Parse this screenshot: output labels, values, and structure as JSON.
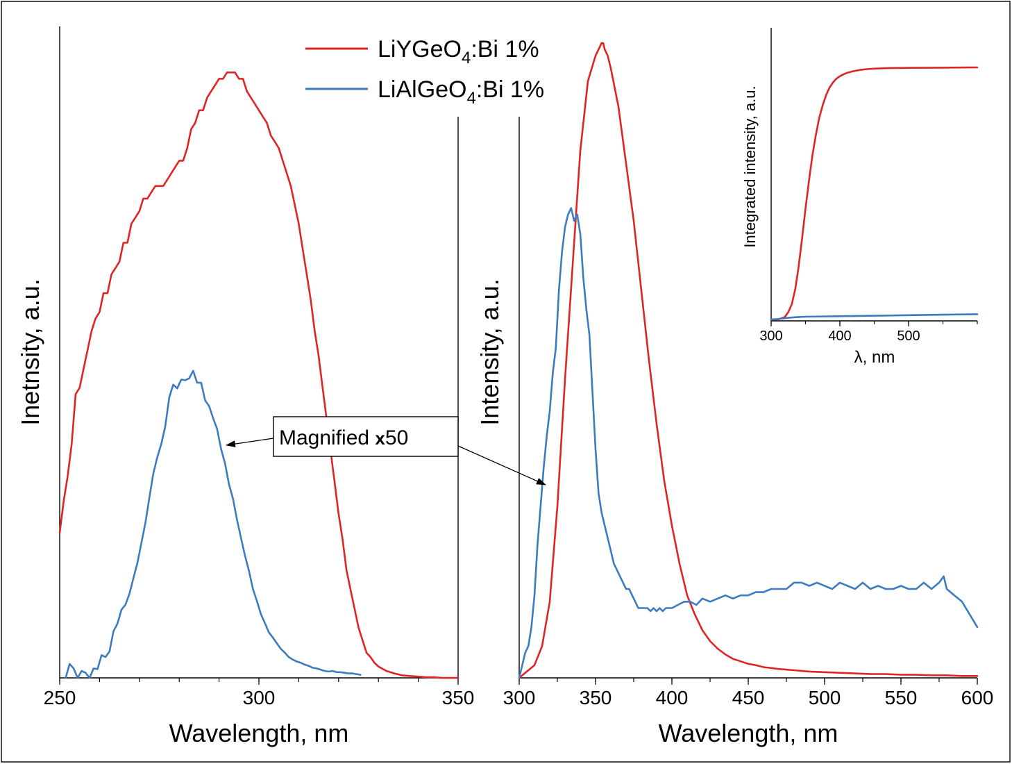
{
  "colors": {
    "series_a": "#e02424",
    "series_b": "#3b7bbf"
  },
  "legend": {
    "items": [
      {
        "formula": "LiYGeO",
        "sub": "4",
        "suffix": ":Bi 1%",
        "color": "#e02424"
      },
      {
        "formula": "LiAlGeO",
        "sub": "4",
        "suffix": ":Bi 1%",
        "color": "#3b7bbf"
      }
    ]
  },
  "annotation": {
    "prefix": "Magnified ",
    "mult": "x",
    "value": "50"
  },
  "chart_data": [
    {
      "id": "excitation",
      "type": "line",
      "xlabel": "Wavelength, nm",
      "ylabel": "Inetnsity, a.u.",
      "xlim": [
        250,
        350
      ],
      "ylim": [
        0,
        1
      ],
      "xticks": [
        250,
        300,
        350
      ],
      "series": [
        {
          "color": "#e02424",
          "x": [
            250,
            251,
            252,
            253,
            254,
            255,
            256,
            257,
            258,
            259,
            260,
            261,
            262,
            263,
            264,
            265,
            266,
            267,
            268,
            269,
            270,
            271,
            272,
            273,
            274,
            275,
            276,
            277,
            278,
            279,
            280,
            281,
            282,
            283,
            284,
            285,
            286,
            287,
            288,
            289,
            290,
            291,
            292,
            293,
            294,
            295,
            296,
            297,
            298,
            299,
            300,
            301,
            302,
            303,
            304,
            305,
            306,
            307,
            308,
            309,
            310,
            311,
            312,
            313,
            314,
            315,
            316,
            317,
            318,
            319,
            320,
            321,
            322,
            323,
            324,
            325,
            326,
            327,
            328,
            329,
            330,
            332,
            334,
            336,
            338,
            340,
            342,
            344,
            346,
            348,
            350
          ],
          "y": [
            0.23,
            0.28,
            0.32,
            0.37,
            0.45,
            0.46,
            0.49,
            0.52,
            0.55,
            0.57,
            0.58,
            0.61,
            0.61,
            0.64,
            0.65,
            0.66,
            0.69,
            0.69,
            0.72,
            0.73,
            0.74,
            0.76,
            0.76,
            0.77,
            0.78,
            0.78,
            0.78,
            0.79,
            0.8,
            0.81,
            0.82,
            0.82,
            0.84,
            0.87,
            0.88,
            0.9,
            0.9,
            0.92,
            0.93,
            0.94,
            0.95,
            0.95,
            0.96,
            0.96,
            0.96,
            0.95,
            0.95,
            0.93,
            0.92,
            0.91,
            0.9,
            0.89,
            0.88,
            0.86,
            0.85,
            0.84,
            0.82,
            0.8,
            0.78,
            0.75,
            0.72,
            0.68,
            0.64,
            0.6,
            0.55,
            0.51,
            0.46,
            0.41,
            0.36,
            0.31,
            0.26,
            0.22,
            0.17,
            0.14,
            0.11,
            0.08,
            0.06,
            0.04,
            0.033,
            0.024,
            0.018,
            0.011,
            0.007,
            0.004,
            0.003,
            0.002,
            0.001,
            0.001,
            0.0,
            0.0,
            0.0
          ]
        },
        {
          "color": "#3b7bbf",
          "x": [
            251.5,
            252.5,
            253.5,
            254.5,
            255.5,
            256.5,
            257.5,
            258.5,
            259.5,
            260.5,
            261.5,
            262.5,
            263.5,
            264.5,
            265.5,
            266.5,
            267.5,
            268.5,
            269.5,
            270.5,
            271.5,
            272.5,
            273.5,
            274.5,
            275.5,
            276.5,
            277.5,
            278.5,
            279.5,
            280.5,
            281.5,
            282.5,
            283.5,
            284.5,
            285.5,
            286.5,
            287.5,
            288.5,
            289.5,
            290.5,
            291.5,
            292.5,
            293.5,
            294.5,
            295.5,
            296.5,
            297.5,
            298.5,
            299.5,
            300.5,
            301.5,
            302.5,
            303.5,
            304.5,
            305.5,
            306.5,
            307.5,
            308.5,
            309.5,
            310.5,
            311.5,
            312.5,
            313.5,
            314.5,
            315.5,
            316.5,
            317.5,
            318.5,
            319.5,
            320.5,
            321.5,
            322.5,
            323.5,
            324.5,
            325.5
          ],
          "y": [
            0.0,
            0.022,
            0.015,
            0.0,
            0.011,
            0.008,
            0.0,
            0.015,
            0.014,
            0.036,
            0.033,
            0.042,
            0.074,
            0.086,
            0.108,
            0.116,
            0.133,
            0.158,
            0.182,
            0.214,
            0.245,
            0.286,
            0.324,
            0.35,
            0.371,
            0.399,
            0.445,
            0.465,
            0.459,
            0.473,
            0.472,
            0.475,
            0.487,
            0.468,
            0.468,
            0.44,
            0.431,
            0.412,
            0.395,
            0.363,
            0.34,
            0.307,
            0.284,
            0.251,
            0.222,
            0.194,
            0.17,
            0.141,
            0.122,
            0.101,
            0.087,
            0.072,
            0.064,
            0.055,
            0.046,
            0.04,
            0.033,
            0.029,
            0.026,
            0.024,
            0.021,
            0.019,
            0.016,
            0.015,
            0.013,
            0.011,
            0.01,
            0.011,
            0.009,
            0.009,
            0.008,
            0.007,
            0.007,
            0.006,
            0.005
          ]
        }
      ]
    },
    {
      "id": "emission",
      "type": "line",
      "xlabel": "Wavelength, nm",
      "ylabel": "Intensity, a.u.",
      "xlim": [
        300,
        600
      ],
      "ylim": [
        0,
        1
      ],
      "xticks": [
        300,
        350,
        400,
        450,
        500,
        550,
        600
      ],
      "series": [
        {
          "color": "#e02424",
          "x": [
            300,
            305,
            310,
            315,
            320,
            325,
            330,
            335,
            340,
            345,
            350,
            352,
            354,
            355,
            356,
            358,
            360,
            365,
            370,
            375,
            380,
            385,
            390,
            395,
            400,
            405,
            410,
            415,
            420,
            425,
            430,
            435,
            440,
            445,
            450,
            455,
            460,
            470,
            480,
            490,
            500,
            510,
            520,
            530,
            540,
            550,
            560,
            570,
            580,
            590,
            600
          ],
          "y": [
            0.0,
            0.01,
            0.02,
            0.05,
            0.12,
            0.27,
            0.47,
            0.65,
            0.83,
            0.94,
            0.98,
            0.99,
            1.0,
            1.0,
            0.99,
            0.98,
            0.96,
            0.9,
            0.81,
            0.72,
            0.61,
            0.5,
            0.4,
            0.31,
            0.24,
            0.18,
            0.13,
            0.1,
            0.075,
            0.058,
            0.046,
            0.037,
            0.03,
            0.026,
            0.022,
            0.02,
            0.017,
            0.014,
            0.012,
            0.01,
            0.009,
            0.008,
            0.007,
            0.006,
            0.006,
            0.005,
            0.005,
            0.004,
            0.004,
            0.003,
            0.003
          ],
          "plot_n": 0
        },
        {
          "color": "#3b7bbf",
          "x": [
            300,
            302,
            304,
            306,
            308,
            310,
            312,
            314,
            316,
            318,
            320,
            322,
            324,
            326,
            328,
            330,
            332,
            334,
            336,
            338,
            340,
            342,
            344,
            346,
            348,
            350,
            352,
            354,
            356,
            358,
            360,
            362,
            364,
            366,
            368,
            370,
            372,
            374,
            376,
            378,
            380,
            382,
            384,
            386,
            388,
            390,
            392,
            394,
            396,
            398,
            400,
            404,
            408,
            412,
            416,
            420,
            425,
            430,
            435,
            440,
            445,
            450,
            455,
            460,
            465,
            470,
            475,
            480,
            485,
            490,
            495,
            500,
            505,
            510,
            515,
            520,
            525,
            530,
            535,
            540,
            545,
            550,
            555,
            560,
            565,
            570,
            575,
            578,
            580,
            585,
            590,
            595,
            600
          ],
          "y": [
            0.0,
            0.02,
            0.04,
            0.05,
            0.08,
            0.13,
            0.21,
            0.27,
            0.33,
            0.38,
            0.42,
            0.48,
            0.52,
            0.61,
            0.67,
            0.71,
            0.73,
            0.74,
            0.72,
            0.73,
            0.7,
            0.63,
            0.58,
            0.54,
            0.45,
            0.36,
            0.29,
            0.26,
            0.24,
            0.22,
            0.2,
            0.18,
            0.17,
            0.16,
            0.15,
            0.14,
            0.14,
            0.13,
            0.12,
            0.11,
            0.11,
            0.11,
            0.11,
            0.105,
            0.11,
            0.105,
            0.11,
            0.105,
            0.11,
            0.11,
            0.11,
            0.115,
            0.12,
            0.12,
            0.115,
            0.125,
            0.12,
            0.125,
            0.13,
            0.125,
            0.13,
            0.13,
            0.135,
            0.135,
            0.14,
            0.14,
            0.14,
            0.15,
            0.15,
            0.145,
            0.15,
            0.145,
            0.14,
            0.15,
            0.145,
            0.14,
            0.15,
            0.14,
            0.145,
            0.14,
            0.14,
            0.145,
            0.14,
            0.14,
            0.15,
            0.14,
            0.15,
            0.16,
            0.14,
            0.13,
            0.12,
            0.1,
            0.08
          ]
        }
      ]
    },
    {
      "id": "inset",
      "type": "line",
      "xlabel": "λ, nm",
      "ylabel": "Integrated intensity, a.u.",
      "xlim": [
        300,
        600
      ],
      "ylim": [
        0,
        1
      ],
      "xticks": [
        300,
        400,
        500
      ],
      "series": [
        {
          "color": "#e02424",
          "x": [
            300,
            310,
            315,
            320,
            325,
            330,
            335,
            340,
            345,
            350,
            355,
            360,
            365,
            370,
            375,
            380,
            385,
            390,
            395,
            400,
            405,
            410,
            420,
            430,
            440,
            450,
            470,
            500,
            550,
            600
          ],
          "y": [
            0.0,
            0.0,
            0.005,
            0.01,
            0.03,
            0.06,
            0.12,
            0.21,
            0.32,
            0.44,
            0.55,
            0.65,
            0.73,
            0.8,
            0.85,
            0.89,
            0.92,
            0.94,
            0.955,
            0.965,
            0.972,
            0.978,
            0.985,
            0.99,
            0.993,
            0.995,
            0.997,
            0.998,
            0.999,
            1.0
          ]
        },
        {
          "color": "#3b7bbf",
          "x": [
            300,
            310,
            320,
            330,
            340,
            350,
            400,
            450,
            500,
            550,
            600
          ],
          "y": [
            0.0,
            0.002,
            0.005,
            0.008,
            0.01,
            0.011,
            0.013,
            0.015,
            0.017,
            0.019,
            0.021
          ]
        }
      ]
    }
  ]
}
